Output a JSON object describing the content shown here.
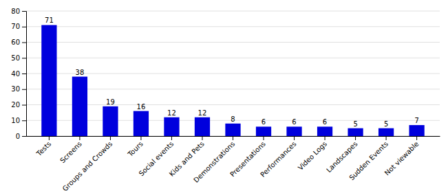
{
  "chart_data": {
    "type": "bar",
    "categories": [
      "Tests",
      "Screens",
      "Groups and Crowds",
      "Tours",
      "Social events",
      "Kids and Pets",
      "Demonstrations",
      "Presentations",
      "Performances",
      "Video Logs",
      "Landscapes",
      "Sudden Events",
      "Not viewable"
    ],
    "values": [
      71,
      38,
      19,
      16,
      12,
      12,
      8,
      6,
      6,
      6,
      5,
      5,
      7
    ],
    "color": "#0000dd",
    "ylim": [
      0,
      80
    ],
    "yticks": [
      0,
      10,
      20,
      30,
      40,
      50,
      60,
      70,
      80
    ],
    "grid": true,
    "data_labels": true
  }
}
